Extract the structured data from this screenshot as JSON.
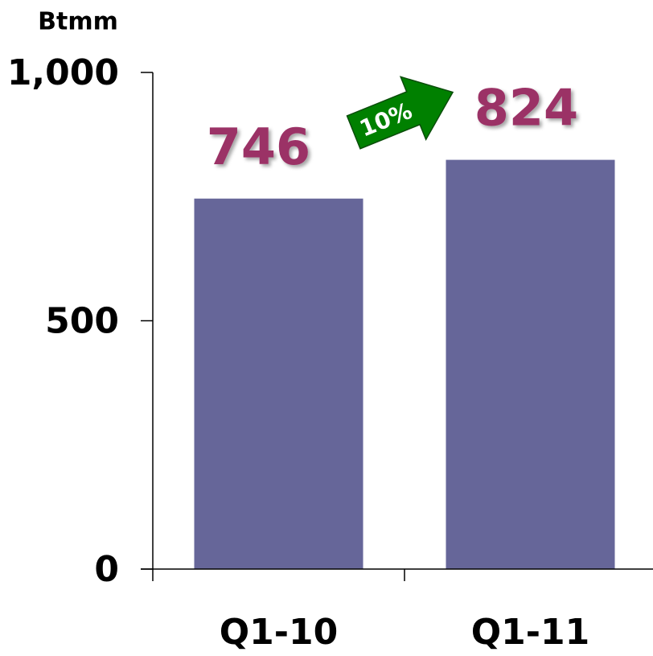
{
  "chart_data": {
    "type": "bar",
    "y_label": "Btmm",
    "categories": [
      "Q1-10",
      "Q1-11"
    ],
    "values": [
      746,
      824
    ],
    "color": "#666699",
    "ylim": [
      0,
      1000
    ],
    "yticks": [
      0,
      500,
      {
        "value": 1000,
        "label": "1,000"
      }
    ],
    "annotation": "10%",
    "annotation_color": "#008000",
    "value_label_color": "#9b3366"
  }
}
